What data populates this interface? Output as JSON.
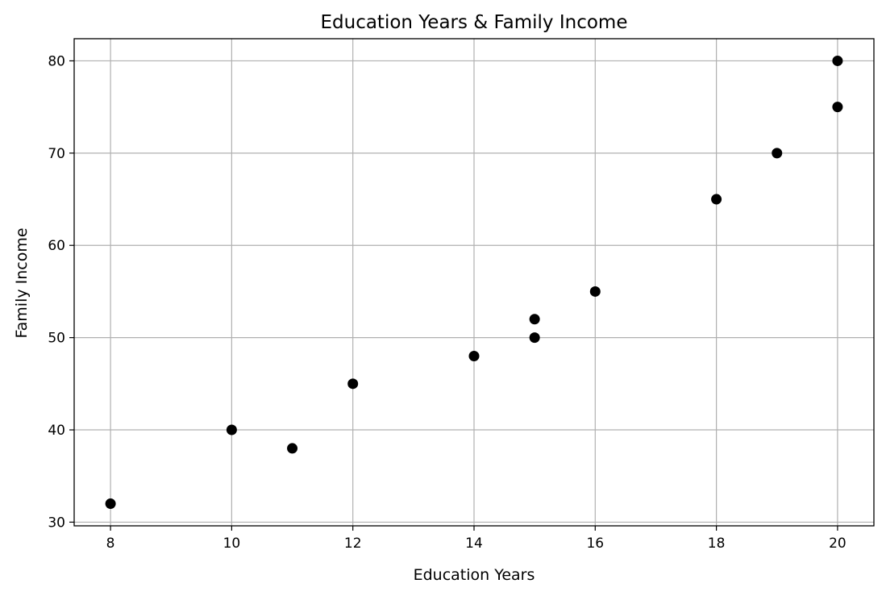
{
  "chart_data": {
    "type": "scatter",
    "title": "Education Years & Family Income",
    "xlabel": "Education Years",
    "ylabel": "Family Income",
    "xlim": [
      7.4,
      20.6
    ],
    "ylim": [
      29.6,
      82.4
    ],
    "xticks": [
      8,
      10,
      12,
      14,
      16,
      18,
      20
    ],
    "yticks": [
      30,
      40,
      50,
      60,
      70,
      80
    ],
    "grid": true,
    "point_color": "#000000",
    "points": [
      {
        "x": 8,
        "y": 32
      },
      {
        "x": 10,
        "y": 40
      },
      {
        "x": 11,
        "y": 38
      },
      {
        "x": 12,
        "y": 45
      },
      {
        "x": 14,
        "y": 48
      },
      {
        "x": 15,
        "y": 52
      },
      {
        "x": 15,
        "y": 50
      },
      {
        "x": 16,
        "y": 55
      },
      {
        "x": 18,
        "y": 65
      },
      {
        "x": 19,
        "y": 70
      },
      {
        "x": 20,
        "y": 80
      },
      {
        "x": 20,
        "y": 75
      }
    ]
  }
}
